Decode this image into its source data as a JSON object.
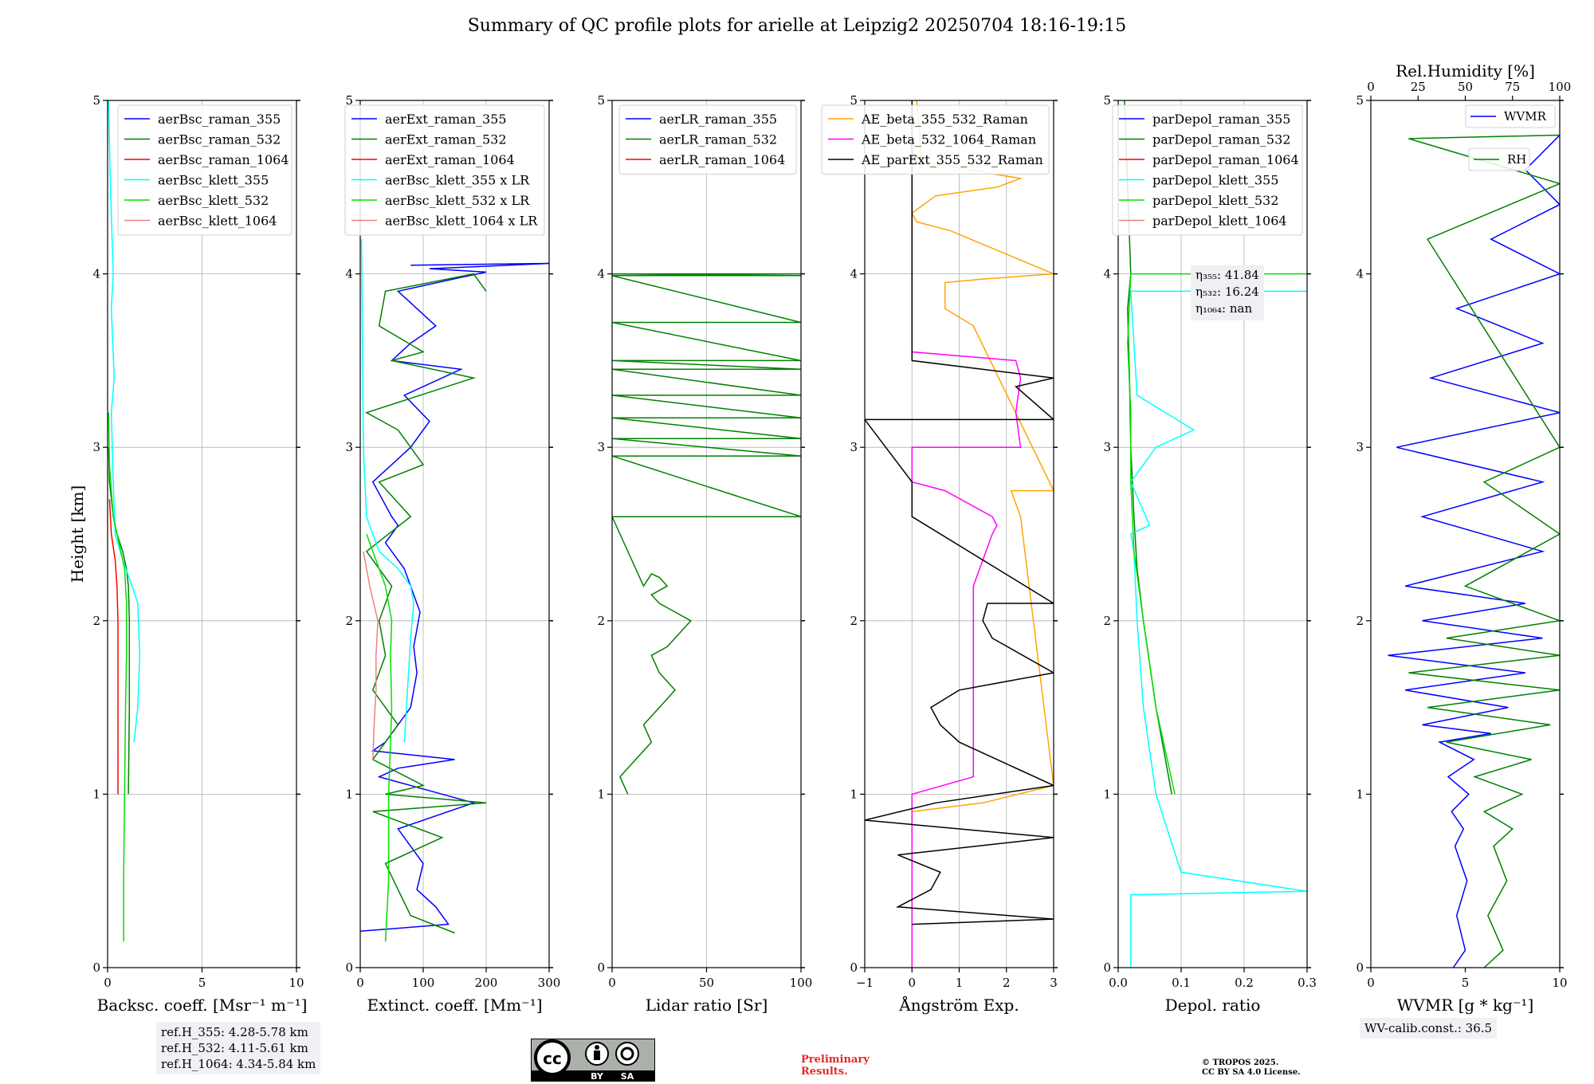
{
  "title": "Summary of QC profile plots for arielle at Leipzig2 20250704 18:16-19:15",
  "chart_data": [
    {
      "type": "line",
      "panel": "backscatter",
      "xlabel": "Backsc. coeff. [Msr⁻¹ m⁻¹]",
      "ylabel": "Height [km]",
      "xlim": [
        0,
        10
      ],
      "ylim": [
        0,
        5
      ],
      "xticks": [
        "0",
        "5",
        "10"
      ],
      "yticks": [
        "0",
        "1",
        "2",
        "3",
        "4",
        "5"
      ],
      "grid": true,
      "legend": "top-right",
      "series": [
        {
          "name": "aerBsc_raman_355",
          "color": "#0000ff",
          "x": [],
          "y": []
        },
        {
          "name": "aerBsc_raman_532",
          "color": "#008000",
          "x": [
            1.1,
            1.15,
            1.15,
            1.1,
            1.0,
            0.8,
            0.5,
            0.3,
            0.1,
            0.05
          ],
          "y": [
            1.0,
            1.5,
            2.0,
            2.2,
            2.3,
            2.4,
            2.5,
            2.6,
            2.8,
            3.0
          ]
        },
        {
          "name": "aerBsc_raman_1064",
          "color": "#ff0000",
          "x": [
            0.55,
            0.55,
            0.55,
            0.5,
            0.4,
            0.2,
            0.1
          ],
          "y": [
            1.0,
            1.6,
            2.0,
            2.2,
            2.35,
            2.5,
            2.7
          ]
        },
        {
          "name": "aerBsc_klett_355",
          "color": "#00ffff",
          "x": [
            1.4,
            1.6,
            1.7,
            1.6,
            1.3,
            0.8,
            0.4,
            0.3,
            0.2,
            0.35,
            0.2,
            0.3,
            0.15,
            0.05
          ],
          "y": [
            1.3,
            1.5,
            1.8,
            2.1,
            2.2,
            2.35,
            2.5,
            2.8,
            3.2,
            3.4,
            3.8,
            4.0,
            4.5,
            5.0
          ]
        },
        {
          "name": "aerBsc_klett_532",
          "color": "#00e000",
          "x": [
            0.85,
            0.85,
            0.9,
            0.95,
            1.0,
            1.0,
            0.9,
            0.6,
            0.3,
            0.1,
            0.05
          ],
          "y": [
            0.15,
            0.5,
            1.0,
            1.5,
            1.8,
            2.1,
            2.3,
            2.45,
            2.6,
            2.9,
            3.2
          ]
        },
        {
          "name": "aerBsc_klett_1064",
          "color": "#f08080",
          "x": [],
          "y": []
        }
      ]
    },
    {
      "type": "line",
      "panel": "extinction",
      "xlabel": "Extinct. coeff. [Mm⁻¹]",
      "xlim": [
        0,
        300
      ],
      "ylim": [
        0,
        5
      ],
      "xticks": [
        "0",
        "100",
        "200",
        "300"
      ],
      "yticks": [
        "0",
        "1",
        "2",
        "3",
        "4",
        "5"
      ],
      "grid": true,
      "legend": "top-right",
      "series": [
        {
          "name": "aerExt_raman_355",
          "color": "#0000ff",
          "x": [
            0,
            140,
            120,
            90,
            100,
            80,
            70,
            60,
            180,
            30,
            60,
            150,
            20,
            40,
            80,
            90,
            85,
            95,
            70,
            40,
            60,
            50,
            20,
            80,
            110,
            70,
            160,
            50,
            80,
            120,
            60,
            160,
            200,
            110,
            300,
            80
          ],
          "y": [
            0.21,
            0.25,
            0.35,
            0.45,
            0.6,
            0.7,
            0.75,
            0.8,
            0.95,
            1.1,
            1.15,
            1.2,
            1.25,
            1.3,
            1.5,
            1.7,
            1.85,
            2.05,
            2.3,
            2.45,
            2.55,
            2.6,
            2.8,
            3.0,
            3.15,
            3.3,
            3.45,
            3.5,
            3.6,
            3.7,
            3.9,
            3.98,
            4.01,
            4.03,
            4.06,
            4.05
          ]
        },
        {
          "name": "aerExt_raman_532",
          "color": "#008000",
          "x": [
            150,
            80,
            40,
            130,
            20,
            200,
            40,
            100,
            20,
            60,
            20,
            40,
            30,
            50,
            10,
            80,
            30,
            100,
            60,
            10,
            180,
            50,
            100,
            30,
            40,
            180,
            200
          ],
          "y": [
            0.2,
            0.3,
            0.6,
            0.75,
            0.9,
            0.95,
            1.0,
            1.05,
            1.2,
            1.4,
            1.6,
            1.8,
            2.0,
            2.2,
            2.4,
            2.6,
            2.8,
            2.9,
            3.1,
            3.2,
            3.4,
            3.5,
            3.55,
            3.7,
            3.9,
            4.0,
            3.9
          ]
        },
        {
          "name": "aerExt_raman_1064",
          "color": "#ff0000",
          "x": [],
          "y": []
        },
        {
          "name": "aerBsc_klett_355 x LR",
          "color": "#00ffff",
          "x": [
            70,
            75,
            80,
            85,
            80,
            60,
            30,
            10,
            5,
            2
          ],
          "y": [
            1.3,
            1.6,
            1.9,
            2.1,
            2.2,
            2.3,
            2.4,
            2.6,
            3.0,
            4.2
          ]
        },
        {
          "name": "aerBsc_klett_532 x LR",
          "color": "#00e000",
          "x": [
            40,
            45,
            45,
            50,
            48,
            50,
            40,
            30,
            20,
            10
          ],
          "y": [
            0.15,
            0.5,
            1.0,
            1.5,
            1.8,
            2.0,
            2.2,
            2.3,
            2.4,
            2.5
          ]
        },
        {
          "name": "aerBsc_klett_1064 x LR",
          "color": "#f08080",
          "x": [
            20,
            22,
            25,
            25,
            28,
            15,
            5
          ],
          "y": [
            1.2,
            1.4,
            1.6,
            1.8,
            2.0,
            2.2,
            2.4
          ]
        }
      ]
    },
    {
      "type": "line",
      "panel": "lidar-ratio",
      "xlabel": "Lidar ratio [Sr]",
      "xlim": [
        0,
        120
      ],
      "ylim": [
        0,
        5
      ],
      "xticks": [
        "0",
        "50",
        "100"
      ],
      "yticks": [
        "0",
        "1",
        "2",
        "3",
        "4",
        "5"
      ],
      "grid": true,
      "legend": "top-right",
      "series": [
        {
          "name": "aerLR_raman_355",
          "color": "#0000ff",
          "x": [],
          "y": []
        },
        {
          "name": "aerLR_raman_532",
          "color": "#008000",
          "x": [
            10,
            5,
            15,
            25,
            20,
            30,
            35,
            40,
            30,
            25,
            35,
            45,
            50,
            40,
            30,
            25,
            35,
            30,
            25,
            20,
            5,
            0,
            120,
            0,
            120,
            0,
            120,
            0,
            120,
            0,
            120,
            0,
            120,
            0,
            120,
            0,
            120,
            0,
            120,
            0,
            120
          ],
          "y": [
            1.0,
            1.1,
            1.2,
            1.3,
            1.4,
            1.5,
            1.55,
            1.6,
            1.7,
            1.8,
            1.85,
            1.95,
            2.0,
            2.05,
            2.1,
            2.15,
            2.2,
            2.25,
            2.27,
            2.2,
            2.5,
            2.6,
            2.6,
            2.95,
            2.95,
            3.05,
            3.05,
            3.17,
            3.17,
            3.3,
            3.3,
            3.45,
            3.45,
            3.5,
            3.5,
            3.72,
            3.72,
            3.99,
            3.99,
            4.0,
            4.0
          ]
        },
        {
          "name": "aerLR_raman_1064",
          "color": "#ff0000",
          "x": [],
          "y": []
        }
      ]
    },
    {
      "type": "line",
      "panel": "angstrom",
      "xlabel": "Ångström Exp.",
      "xlim": [
        -1,
        3
      ],
      "ylim": [
        0,
        5
      ],
      "xticks": [
        "−1",
        "0",
        "1",
        "2",
        "3"
      ],
      "yticks": [
        "0",
        "1",
        "2",
        "3",
        "4",
        "5"
      ],
      "grid": true,
      "legend": "top-left",
      "series": [
        {
          "name": "AE_beta_355_532_Raman",
          "color": "#ffa500",
          "x": [
            0,
            1.5,
            3,
            2.3,
            2.1,
            3,
            1.3,
            0.7,
            0.7,
            1.5,
            3,
            0.8,
            0.1,
            0,
            0.5,
            1.8,
            2.3,
            1.2,
            0.2,
            0.1
          ],
          "y": [
            0.9,
            0.95,
            1.05,
            2.6,
            2.75,
            2.75,
            3.7,
            3.8,
            3.95,
            3.97,
            4.0,
            4.25,
            4.3,
            4.35,
            4.45,
            4.5,
            4.55,
            4.6,
            4.65,
            5.0
          ]
        },
        {
          "name": "AE_beta_532_1064_Raman",
          "color": "#ff00ff",
          "x": [
            0,
            0,
            1.3,
            1.3,
            1.3,
            1.7,
            1.8,
            1.7,
            0.7,
            0,
            0,
            2.3,
            2.2,
            2.3,
            2.2,
            0,
            0
          ],
          "y": [
            0,
            1.0,
            1.1,
            1.5,
            2.2,
            2.5,
            2.55,
            2.6,
            2.75,
            2.8,
            3.0,
            3.0,
            3.2,
            3.4,
            3.5,
            3.55,
            4.5
          ]
        },
        {
          "name": "AE_parExt_355_532_Raman",
          "color": "#000000",
          "x": [
            0,
            3,
            -0.3,
            0.4,
            0.6,
            -0.3,
            3,
            -1,
            0.5,
            3,
            1,
            0.6,
            0.4,
            1,
            3,
            1.7,
            1.5,
            1.6,
            3,
            0,
            0,
            -1,
            3,
            2.2,
            3,
            0,
            0
          ],
          "y": [
            0.25,
            0.28,
            0.35,
            0.45,
            0.55,
            0.65,
            0.75,
            0.85,
            0.95,
            1.05,
            1.3,
            1.4,
            1.5,
            1.6,
            1.7,
            1.9,
            2.0,
            2.1,
            2.1,
            2.6,
            2.8,
            3.16,
            3.16,
            3.35,
            3.4,
            3.5,
            5.0
          ]
        }
      ]
    },
    {
      "type": "line",
      "panel": "depolarization",
      "xlabel": "Depol. ratio",
      "xlim": [
        0,
        0.3
      ],
      "ylim": [
        0,
        5
      ],
      "xticks": [
        "0.0",
        "0.1",
        "0.2",
        "0.3"
      ],
      "yticks": [
        "0",
        "1",
        "2",
        "3",
        "4",
        "5"
      ],
      "grid": true,
      "legend": "top-left",
      "series": [
        {
          "name": "parDepol_raman_355",
          "color": "#0000ff",
          "x": [],
          "y": []
        },
        {
          "name": "parDepol_raman_532",
          "color": "#008000",
          "x": [
            0.085,
            0.06,
            0.04,
            0.03,
            0.025,
            0.02,
            0.018,
            0.015,
            0.02,
            0.01
          ],
          "y": [
            1.0,
            1.5,
            2.0,
            2.3,
            2.6,
            3.0,
            3.4,
            3.8,
            4.0,
            5.0
          ]
        },
        {
          "name": "parDepol_raman_1064",
          "color": "#ff0000",
          "x": [],
          "y": []
        },
        {
          "name": "parDepol_klett_355",
          "color": "#00ffff",
          "x": [
            0.02,
            0.02,
            0.3,
            0.1,
            0.06,
            0.04,
            0.03,
            0.025,
            0.02,
            0.05,
            0.02,
            0.06,
            0.12,
            0.03,
            0.02,
            0.3
          ],
          "y": [
            0,
            0.42,
            0.44,
            0.55,
            1.0,
            1.5,
            2.0,
            2.4,
            2.5,
            2.55,
            2.8,
            3.0,
            3.1,
            3.3,
            3.9,
            3.9
          ]
        },
        {
          "name": "parDepol_klett_532",
          "color": "#00e000",
          "x": [
            0.09,
            0.06,
            0.04,
            0.025,
            0.02,
            0.02,
            0.015,
            0.02,
            0.3
          ],
          "y": [
            1.0,
            1.5,
            2.0,
            2.4,
            2.8,
            3.2,
            3.6,
            4.0,
            4.0
          ]
        },
        {
          "name": "parDepol_klett_1064",
          "color": "#f08080",
          "x": [],
          "y": []
        }
      ]
    },
    {
      "type": "line",
      "panel": "water-vapor",
      "xlabel": "WVMR [g * kg⁻¹]",
      "x2label": "Rel.Humidity [%]",
      "xlim": [
        0,
        11
      ],
      "x2lim": [
        0,
        100
      ],
      "ylim": [
        0,
        5
      ],
      "xticks": [
        "0",
        "5",
        "10"
      ],
      "x2ticks": [
        "0",
        "25",
        "50",
        "75",
        "100"
      ],
      "yticks": [
        "0",
        "1",
        "2",
        "3",
        "4",
        "5"
      ],
      "grid": false,
      "legend": "top-right",
      "series": [
        {
          "name": "WVMR",
          "color": "#0000ff",
          "x": [
            4.8,
            5.5,
            5.0,
            5.6,
            4.9,
            5.4,
            4.7,
            5.7,
            4.5,
            6.0,
            4.0,
            7.0,
            3.0,
            8.0,
            2.0,
            9.0,
            1.0,
            10.0,
            3.0,
            9.0,
            2.0,
            10.0,
            3.0,
            10.0,
            1.5,
            11.0,
            3.5,
            10.0,
            5.0,
            11.0,
            7.0,
            11.0,
            9.0,
            11.0
          ],
          "y": [
            0.0,
            0.1,
            0.3,
            0.5,
            0.7,
            0.8,
            0.9,
            1.0,
            1.1,
            1.2,
            1.3,
            1.35,
            1.4,
            1.5,
            1.6,
            1.7,
            1.8,
            1.9,
            2.0,
            2.1,
            2.2,
            2.4,
            2.6,
            2.8,
            3.0,
            3.2,
            3.4,
            3.6,
            3.8,
            4.0,
            4.2,
            4.4,
            4.6,
            4.8
          ]
        },
        {
          "name": "RH",
          "color": "#008000",
          "x": [
            60,
            70,
            62,
            72,
            65,
            75,
            60,
            80,
            55,
            85,
            40,
            95,
            30,
            100,
            20,
            100,
            40,
            100,
            50,
            100,
            60,
            100,
            30,
            100,
            20,
            100
          ],
          "y": [
            0.0,
            0.1,
            0.3,
            0.5,
            0.7,
            0.8,
            0.9,
            1.0,
            1.1,
            1.2,
            1.3,
            1.4,
            1.5,
            1.6,
            1.7,
            1.8,
            1.9,
            2.0,
            2.2,
            2.5,
            2.8,
            3.0,
            4.2,
            4.52,
            4.78,
            4.8
          ]
        }
      ]
    }
  ],
  "annotations": {
    "eta": [
      "η₃₅₅: 41.84",
      "η₅₃₂: 16.24",
      "η₁₀₆₄: nan"
    ],
    "ref_heights": [
      "ref.H_355: 4.28-5.78 km",
      "ref.H_532: 4.11-5.61 km",
      "ref.H_1064: 4.34-5.84 km"
    ],
    "wv_calib": "WV-calib.const.: 36.5",
    "preliminary": [
      "Preliminary",
      "Results."
    ],
    "copyright": [
      "© TROPOS 2025.",
      "CC BY SA 4.0 License."
    ],
    "license_badge": {
      "left": "cc",
      "labels": [
        "BY",
        "SA"
      ]
    }
  }
}
